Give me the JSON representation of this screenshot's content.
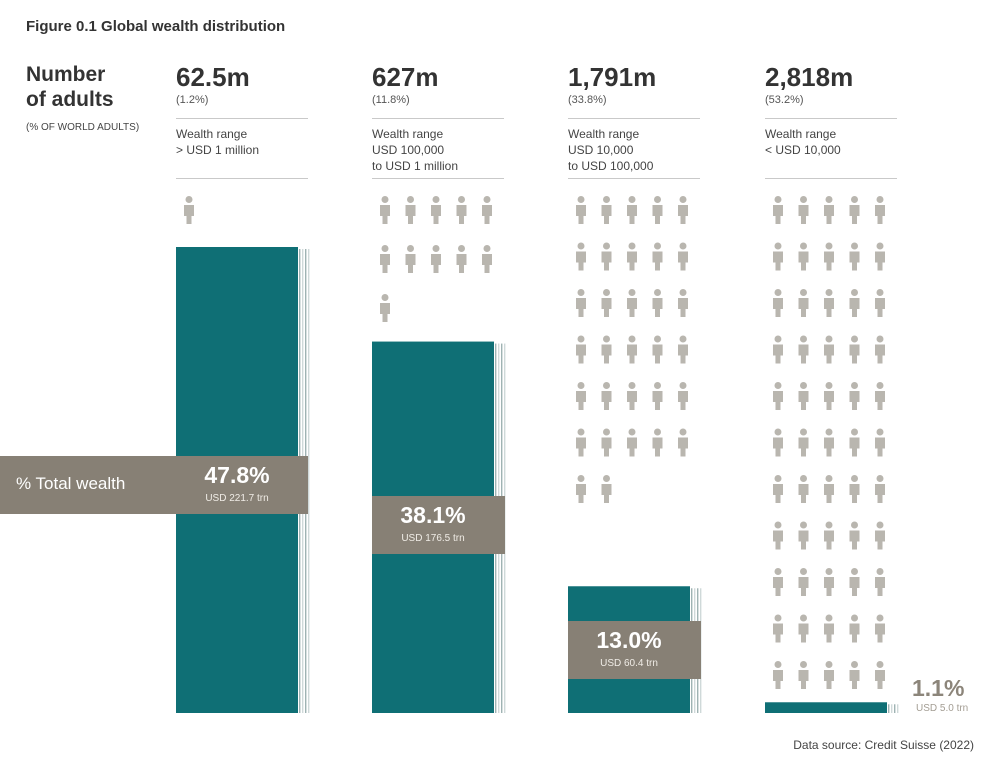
{
  "title": "Figure 0.1 Global wealth distribution",
  "side": {
    "heading_line1": "Number",
    "heading_line2": "of adults",
    "note": "(% OF WORLD ADULTS)",
    "band_label": "% Total wealth"
  },
  "source": "Data source: Credit Suisse (2022)",
  "colors": {
    "teal": "#0f6f75",
    "taupe": "#878075",
    "icon": "#b9b6af",
    "label_gray": "#8c857a"
  },
  "icon_name": "person-icon",
  "chart_data": {
    "type": "bar",
    "categories": [
      "> USD 1 million",
      "USD 100,000 to USD 1 million",
      "USD 10,000 to USD 100,000",
      "< USD 10,000"
    ],
    "series": [
      {
        "values": [
          47.8,
          38.1,
          13.0,
          1.1
        ]
      }
    ],
    "ylim": [
      0,
      47.8
    ],
    "groups": [
      {
        "adults": "62.5m",
        "adult_share": "(1.2%)",
        "range_text": "Wealth range\n> USD 1 million",
        "wealth_pct": "47.8%",
        "wealth_amount": "USD 221.7 trn",
        "wealth_value": 47.8,
        "icon_count": 1
      },
      {
        "adults": "627m",
        "adult_share": "(11.8%)",
        "range_text": "Wealth range\nUSD 100,000\nto USD 1 million",
        "wealth_pct": "38.1%",
        "wealth_amount": "USD 176.5 trn",
        "wealth_value": 38.1,
        "icon_count": 11
      },
      {
        "adults": "1,791m",
        "adult_share": "(33.8%)",
        "range_text": "Wealth range\nUSD 10,000\nto USD 100,000",
        "wealth_pct": "13.0%",
        "wealth_amount": "USD 60.4 trn",
        "wealth_value": 13.0,
        "icon_count": 32
      },
      {
        "adults": "2,818m",
        "adult_share": "(53.2%)",
        "range_text": "Wealth range\n< USD 10,000",
        "wealth_pct": "1.1%",
        "wealth_amount": "USD 5.0 trn",
        "wealth_value": 1.1,
        "icon_count": 55
      }
    ]
  }
}
